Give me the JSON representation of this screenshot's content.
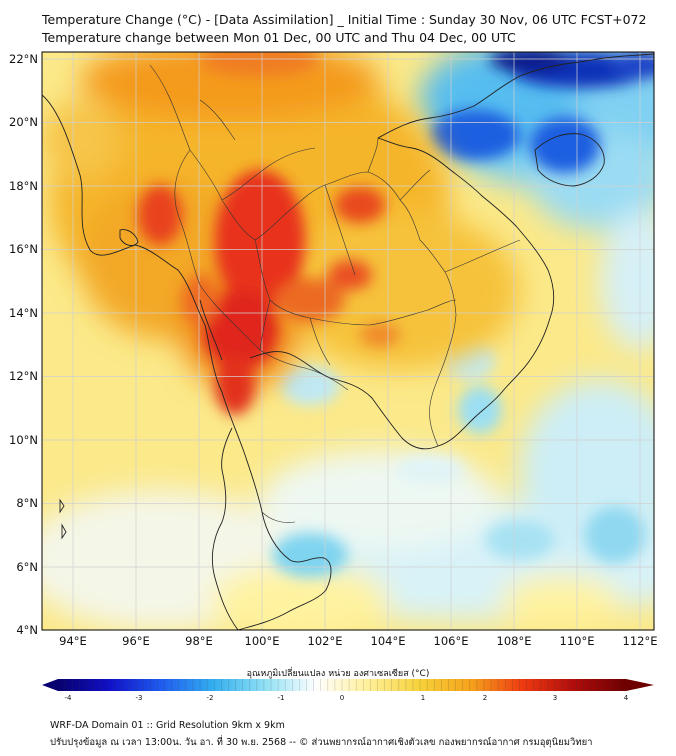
{
  "title_line1": "Temperature Change (°C) - [Data Assimilation] _ Initial Time : Sunday 30 Nov, 06 UTC FCST+072",
  "title_line2": "Temperature change between Mon 01 Dec, 00 UTC and Thu 04 Dec, 00 UTC",
  "map": {
    "lon_range": [
      93,
      112.5
    ],
    "lat_range": [
      4,
      22.2
    ],
    "lat_labels": [
      "22°N",
      "20°N",
      "18°N",
      "16°N",
      "14°N",
      "12°N",
      "10°N",
      "8°N",
      "6°N",
      "4°N"
    ],
    "lon_labels": [
      "94°E",
      "96°E",
      "98°E",
      "100°E",
      "102°E",
      "104°E",
      "106°E",
      "108°E",
      "110°E",
      "112°E"
    ],
    "gridlines": true,
    "warm_zone_lon": [
      96,
      101
    ],
    "warm_zone_lat": [
      12,
      20
    ],
    "cold_zone_lon": [
      104.5,
      112.5
    ],
    "cold_zone_lat": [
      18.5,
      22.2
    ]
  },
  "colorbar": {
    "title": "อุณหภูมิเปลี่ยนแปลง หน่วย องศาเซลเซียส (°C)",
    "min": -4,
    "max": 4,
    "ticks": [
      "-4",
      "-3",
      "-2",
      "-1",
      "0",
      "1",
      "2",
      "3",
      "4"
    ],
    "colors": [
      "#08006e",
      "#1010c8",
      "#1f5cf0",
      "#33aef0",
      "#8fe0f5",
      "#ffffff",
      "#fff09a",
      "#f7d23a",
      "#f5a21c",
      "#ee3a10",
      "#b00c0c",
      "#6e0000"
    ]
  },
  "footer_line1": "WRF-DA Domain 01 :: Grid Resolution 9km x 9km",
  "footer_line2": "ปรับปรุงข้อมูล ณ เวลา 13:00น. วัน อา. ที่ 30 พ.ย. 2568 -- © ส่วนพยากรณ์อากาศเชิงตัวเลข กองพยากรณ์อากาศ กรมอุตุนิยมวิทยา"
}
